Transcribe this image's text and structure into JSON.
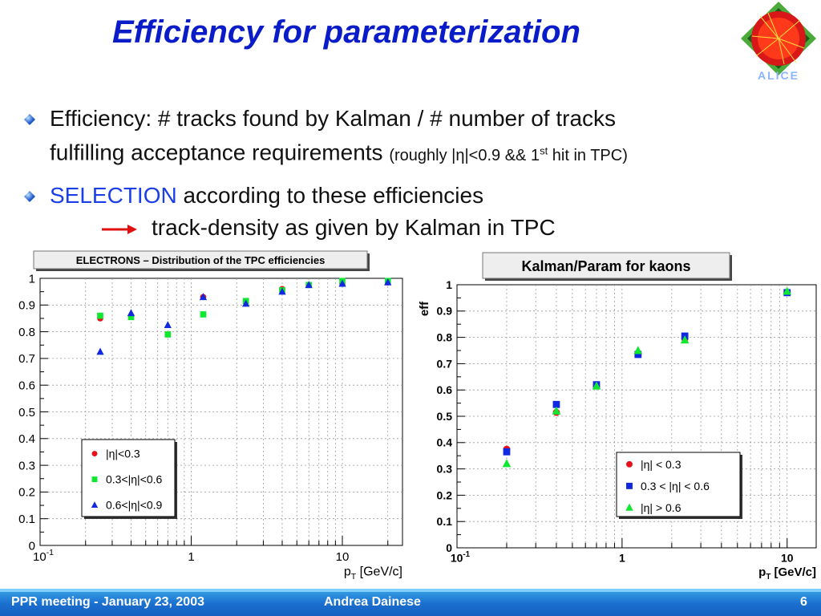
{
  "title": "Efficiency for parameterization",
  "bullets": {
    "b1_line1": "Efficiency: # tracks found by Kalman / # number of tracks",
    "b1_line2": "fulfilling acceptance requirements",
    "b1_small_a": "(roughly |η|<0.9 && 1",
    "b1_small_sup": "st",
    "b1_small_b": " hit in TPC)",
    "b2_highlight": "SELECTION",
    "b2_rest": " according to these efficiencies",
    "arrow_text": "track-density as given by Kalman in TPC"
  },
  "footer": {
    "left": "PPR meeting - January 23, 2003",
    "center": "Andrea Dainese",
    "page": "6"
  },
  "colors": {
    "title": "#0a1cc8",
    "highlight": "#1a3ee8",
    "red": "#e8101a",
    "green": "#10e830",
    "blue": "#1028e0"
  },
  "chart_data": [
    {
      "type": "scatter",
      "title": "ELECTRONS – Distribution of the TPC efficiencies",
      "xlabel": "p_T [GeV/c]",
      "ylabel": "",
      "x_scale": "log",
      "xlim": [
        0.1,
        25
      ],
      "ylim": [
        0,
        1
      ],
      "yticks": [
        "0",
        "0.1",
        "0.2",
        "0.3",
        "0.4",
        "0.5",
        "0.6",
        "0.7",
        "0.8",
        "0.9",
        "1"
      ],
      "xticks": [
        "10^-1",
        "1",
        "10"
      ],
      "legend_placement": "bottom-left",
      "series": [
        {
          "name": "|η|<0.3",
          "marker": "circle",
          "color": "#e8101a",
          "x": [
            0.25,
            0.4,
            0.7,
            1.2,
            2.3,
            4,
            6,
            10,
            20
          ],
          "y": [
            0.85,
            0.86,
            0.79,
            0.93,
            0.91,
            0.96,
            0.975,
            0.98,
            0.985
          ]
        },
        {
          "name": "0.3<|η|<0.6",
          "marker": "square",
          "color": "#10e830",
          "x": [
            0.25,
            0.4,
            0.7,
            1.2,
            2.3,
            4,
            6,
            10,
            20
          ],
          "y": [
            0.86,
            0.855,
            0.79,
            0.865,
            0.915,
            0.955,
            0.975,
            0.99,
            0.99
          ]
        },
        {
          "name": "0.6<|η|<0.9",
          "marker": "triangle",
          "color": "#1028e0",
          "x": [
            0.25,
            0.4,
            0.7,
            1.2,
            2.3,
            4,
            6,
            10,
            20
          ],
          "y": [
            0.725,
            0.87,
            0.825,
            0.93,
            0.905,
            0.95,
            0.975,
            0.98,
            0.985
          ]
        }
      ]
    },
    {
      "type": "scatter",
      "title": "Kalman/Param for kaons",
      "xlabel": "p_T [GeV/c]",
      "ylabel": "eff",
      "x_scale": "log",
      "xlim": [
        0.1,
        15
      ],
      "ylim": [
        0,
        1
      ],
      "yticks": [
        "0",
        "0.1",
        "0.2",
        "0.3",
        "0.4",
        "0.5",
        "0.6",
        "0.7",
        "0.8",
        "0.9",
        "1"
      ],
      "xticks": [
        "10^-1",
        "1",
        "10"
      ],
      "legend_placement": "bottom-right",
      "series": [
        {
          "name": "|η| < 0.3",
          "marker": "circle",
          "color": "#e8101a",
          "x": [
            0.2,
            0.4,
            0.7,
            1.25,
            2.4,
            10
          ],
          "y": [
            0.375,
            0.515,
            0.615,
            0.735,
            0.795,
            0.97
          ]
        },
        {
          "name": "0.3 < |η| < 0.6",
          "marker": "square",
          "color": "#1028e0",
          "x": [
            0.2,
            0.4,
            0.7,
            1.25,
            2.4,
            10
          ],
          "y": [
            0.365,
            0.545,
            0.62,
            0.735,
            0.805,
            0.97
          ]
        },
        {
          "name": "|η| > 0.6",
          "marker": "triangle",
          "color": "#10e830",
          "x": [
            0.2,
            0.4,
            0.7,
            1.25,
            2.4,
            10
          ],
          "y": [
            0.32,
            0.52,
            0.615,
            0.75,
            0.79,
            0.975
          ]
        }
      ]
    }
  ]
}
